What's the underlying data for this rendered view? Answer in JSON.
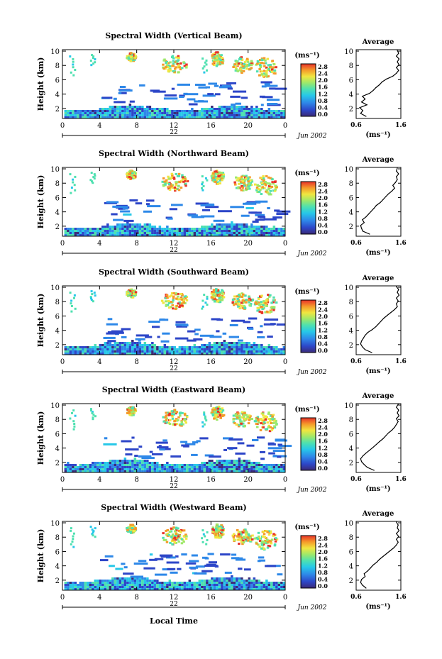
{
  "figure": {
    "xlabel_bottom": "Local Time",
    "date_label": "Jun 2002"
  },
  "chart_data": [
    {
      "type": "heatmap",
      "title": "Spectral Width (Vertical Beam)",
      "ylabel": "Height (km)",
      "xlim": [
        0,
        24
      ],
      "ylim": [
        0.6,
        10.2
      ],
      "x_ticks": [
        "0",
        "4",
        "8",
        "12",
        "16",
        "20",
        "0"
      ],
      "y_ticks": [
        "2",
        "4",
        "6",
        "8",
        "10"
      ],
      "day_label": "22",
      "colorbar": {
        "unit": "(ms⁻¹)",
        "ticks": [
          "0.0",
          "0.4",
          "0.8",
          "1.2",
          "1.6",
          "2.0",
          "2.4",
          "2.8"
        ]
      },
      "average": {
        "title": "Average",
        "xlabel": "(ms⁻¹)",
        "xlim": [
          0.6,
          1.6
        ],
        "x_ticks": [
          "0.6",
          "1.6"
        ],
        "heights": [
          0.9,
          1.3,
          1.7,
          2.1,
          2.5,
          2.9,
          3.3,
          3.7,
          4.1,
          4.5,
          4.9,
          5.3,
          5.7,
          6.1,
          6.5,
          6.9,
          7.3,
          7.7,
          8.1,
          8.5,
          8.9,
          9.3,
          9.7,
          10.1
        ],
        "values": [
          0.82,
          0.7,
          0.75,
          0.68,
          0.84,
          0.72,
          0.8,
          0.74,
          0.9,
          0.98,
          1.04,
          1.12,
          1.18,
          1.28,
          1.42,
          1.5,
          1.55,
          1.5,
          1.56,
          1.52,
          1.56,
          1.5,
          1.55,
          1.52
        ]
      }
    },
    {
      "type": "heatmap",
      "title": "Spectral Width (Northward Beam)",
      "ylabel": "Height (km)",
      "xlim": [
        0,
        24
      ],
      "ylim": [
        0.6,
        10.2
      ],
      "x_ticks": [
        "0",
        "4",
        "8",
        "12",
        "16",
        "20",
        "0"
      ],
      "y_ticks": [
        "2",
        "4",
        "6",
        "8",
        "10"
      ],
      "day_label": "22",
      "colorbar": {
        "unit": "(ms⁻¹)",
        "ticks": [
          "0.0",
          "0.4",
          "0.8",
          "1.2",
          "1.6",
          "2.0",
          "2.4",
          "2.8"
        ]
      },
      "average": {
        "title": "Average",
        "xlabel": "(ms⁻¹)",
        "xlim": [
          0.6,
          1.6
        ],
        "x_ticks": [
          "0.6",
          "1.6"
        ],
        "heights": [
          0.9,
          1.3,
          1.7,
          2.1,
          2.5,
          2.9,
          3.3,
          3.7,
          4.1,
          4.5,
          4.9,
          5.3,
          5.7,
          6.1,
          6.5,
          6.9,
          7.3,
          7.7,
          8.1,
          8.5,
          8.9,
          9.3,
          9.7,
          10.1
        ],
        "values": [
          0.9,
          0.75,
          0.72,
          0.7,
          0.78,
          0.74,
          0.82,
          0.88,
          0.94,
          1.0,
          1.05,
          1.14,
          1.2,
          1.26,
          1.32,
          1.4,
          1.46,
          1.42,
          1.48,
          1.52,
          1.5,
          1.55,
          1.5,
          1.52
        ]
      }
    },
    {
      "type": "heatmap",
      "title": "Spectral Width (Southward Beam)",
      "ylabel": "Height (km)",
      "xlim": [
        0,
        24
      ],
      "ylim": [
        0.6,
        10.2
      ],
      "x_ticks": [
        "0",
        "4",
        "8",
        "12",
        "16",
        "20",
        "0"
      ],
      "y_ticks": [
        "2",
        "4",
        "6",
        "8",
        "10"
      ],
      "day_label": "22",
      "colorbar": {
        "unit": "(ms⁻¹)",
        "ticks": [
          "0.0",
          "0.4",
          "0.8",
          "1.2",
          "1.6",
          "2.0",
          "2.4",
          "2.8"
        ]
      },
      "average": {
        "title": "Average",
        "xlabel": "(ms⁻¹)",
        "xlim": [
          0.6,
          1.6
        ],
        "x_ticks": [
          "0.6",
          "1.6"
        ],
        "heights": [
          0.9,
          1.3,
          1.7,
          2.1,
          2.5,
          2.9,
          3.3,
          3.7,
          4.1,
          4.5,
          4.9,
          5.3,
          5.7,
          6.1,
          6.5,
          6.9,
          7.3,
          7.7,
          8.1,
          8.5,
          8.9,
          9.3,
          9.7,
          10.1
        ],
        "values": [
          0.95,
          0.8,
          0.74,
          0.7,
          0.72,
          0.76,
          0.8,
          0.86,
          0.96,
          1.04,
          1.1,
          1.16,
          1.22,
          1.3,
          1.38,
          1.46,
          1.52,
          1.5,
          1.54,
          1.5,
          1.56,
          1.52,
          1.55,
          1.5
        ]
      }
    },
    {
      "type": "heatmap",
      "title": "Spectral Width (Eastward Beam)",
      "ylabel": "Height (km)",
      "xlim": [
        0,
        24
      ],
      "ylim": [
        0.6,
        10.2
      ],
      "x_ticks": [
        "0",
        "4",
        "8",
        "12",
        "16",
        "20",
        "0"
      ],
      "y_ticks": [
        "2",
        "4",
        "6",
        "8",
        "10"
      ],
      "day_label": "22",
      "colorbar": {
        "unit": "(ms⁻¹)",
        "ticks": [
          "0.0",
          "0.4",
          "0.8",
          "1.2",
          "1.6",
          "2.0",
          "2.4",
          "2.8"
        ]
      },
      "average": {
        "title": "Average",
        "xlabel": "(ms⁻¹)",
        "xlim": [
          0.6,
          1.6
        ],
        "x_ticks": [
          "0.6",
          "1.6"
        ],
        "heights": [
          0.9,
          1.3,
          1.7,
          2.1,
          2.5,
          2.9,
          3.3,
          3.7,
          4.1,
          4.5,
          4.9,
          5.3,
          5.7,
          6.1,
          6.5,
          6.9,
          7.3,
          7.7,
          8.1,
          8.5,
          8.9,
          9.3,
          9.7,
          10.1
        ],
        "values": [
          1.0,
          0.85,
          0.78,
          0.72,
          0.7,
          0.75,
          0.82,
          0.9,
          0.98,
          1.05,
          1.12,
          1.2,
          1.26,
          1.32,
          1.4,
          1.46,
          1.5,
          1.54,
          1.5,
          1.56,
          1.52,
          1.55,
          1.5,
          1.54
        ]
      }
    },
    {
      "type": "heatmap",
      "title": "Spectral Width (Westward Beam)",
      "ylabel": "Height (km)",
      "xlim": [
        0,
        24
      ],
      "ylim": [
        0.6,
        10.2
      ],
      "x_ticks": [
        "0",
        "4",
        "8",
        "12",
        "16",
        "20",
        "0"
      ],
      "y_ticks": [
        "2",
        "4",
        "6",
        "8",
        "10"
      ],
      "day_label": "22",
      "colorbar": {
        "unit": "(ms⁻¹)",
        "ticks": [
          "0.0",
          "0.4",
          "0.8",
          "1.2",
          "1.6",
          "2.0",
          "2.4",
          "2.8"
        ]
      },
      "average": {
        "title": "Average",
        "xlabel": "(ms⁻¹)",
        "xlim": [
          0.6,
          1.6
        ],
        "x_ticks": [
          "0.6",
          "1.6"
        ],
        "heights": [
          0.9,
          1.3,
          1.7,
          2.1,
          2.5,
          2.9,
          3.3,
          3.7,
          4.1,
          4.5,
          4.9,
          5.3,
          5.7,
          6.1,
          6.5,
          6.9,
          7.3,
          7.7,
          8.1,
          8.5,
          8.9,
          9.3,
          9.7,
          10.1
        ],
        "values": [
          0.82,
          0.74,
          0.7,
          0.72,
          0.8,
          0.78,
          0.86,
          0.92,
          0.98,
          1.06,
          1.12,
          1.2,
          1.28,
          1.36,
          1.44,
          1.5,
          1.54,
          1.5,
          1.55,
          1.5,
          1.56,
          1.52,
          1.54,
          1.5
        ]
      }
    }
  ]
}
